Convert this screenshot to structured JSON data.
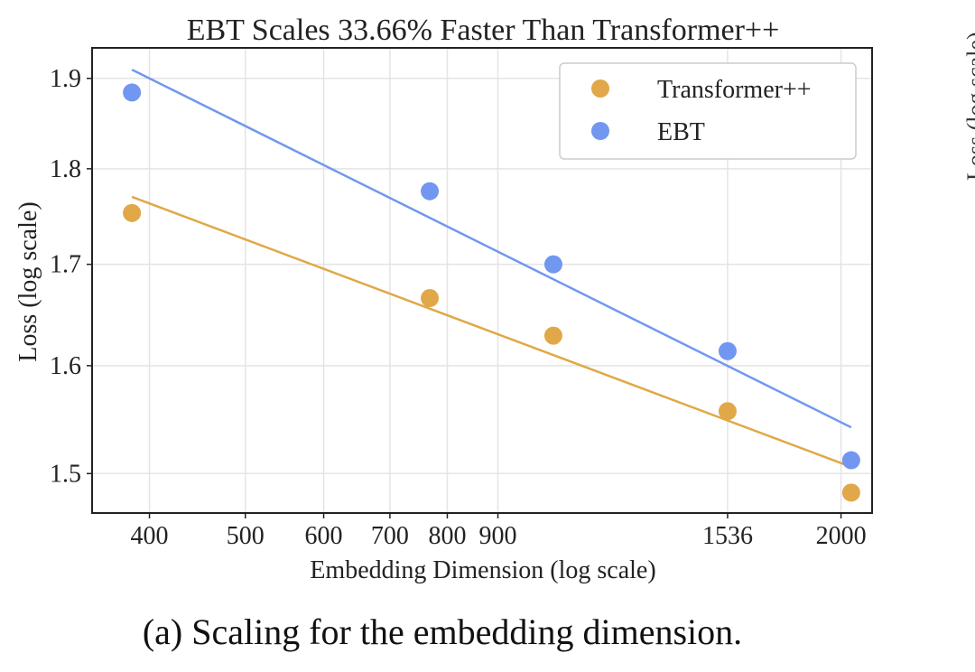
{
  "chart_data": {
    "type": "scatter",
    "title": "EBT Scales 33.66% Faster Than Transformer++",
    "xlabel": "Embedding Dimension (log scale)",
    "ylabel": "Loss (log scale)",
    "x_scale": "log",
    "y_scale": "log",
    "xlim": [
      350,
      2150
    ],
    "ylim": [
      1.465,
      1.935
    ],
    "xticks": [
      400,
      500,
      600,
      700,
      800,
      900,
      1536,
      2000
    ],
    "xtick_labels": [
      "400",
      "500",
      "600",
      "700",
      "800",
      "900",
      "1536",
      "2000"
    ],
    "yticks": [
      1.5,
      1.6,
      1.7,
      1.8,
      1.9
    ],
    "ytick_labels": [
      "1.5",
      "1.6",
      "1.7",
      "1.8",
      "1.9"
    ],
    "grid": true,
    "legend_position": "top-right",
    "series": [
      {
        "name": "Transformer++",
        "color": "#E0A848",
        "x": [
          384,
          768,
          1024,
          1536,
          2048
        ],
        "y": [
          1.753,
          1.666,
          1.629,
          1.557,
          1.483
        ],
        "fit": {
          "x": [
            384,
            2048
          ],
          "y": [
            1.77,
            1.506
          ]
        }
      },
      {
        "name": "EBT",
        "color": "#7197F0",
        "x": [
          384,
          768,
          1024,
          1536,
          2048
        ],
        "y": [
          1.884,
          1.776,
          1.7,
          1.614,
          1.512
        ],
        "fit": {
          "x": [
            384,
            2048
          ],
          "y": [
            1.91,
            1.542
          ]
        }
      }
    ]
  },
  "caption": "(a) Scaling for the embedding dimension.",
  "neighbor_label_fragment": "Loss (log scale)"
}
